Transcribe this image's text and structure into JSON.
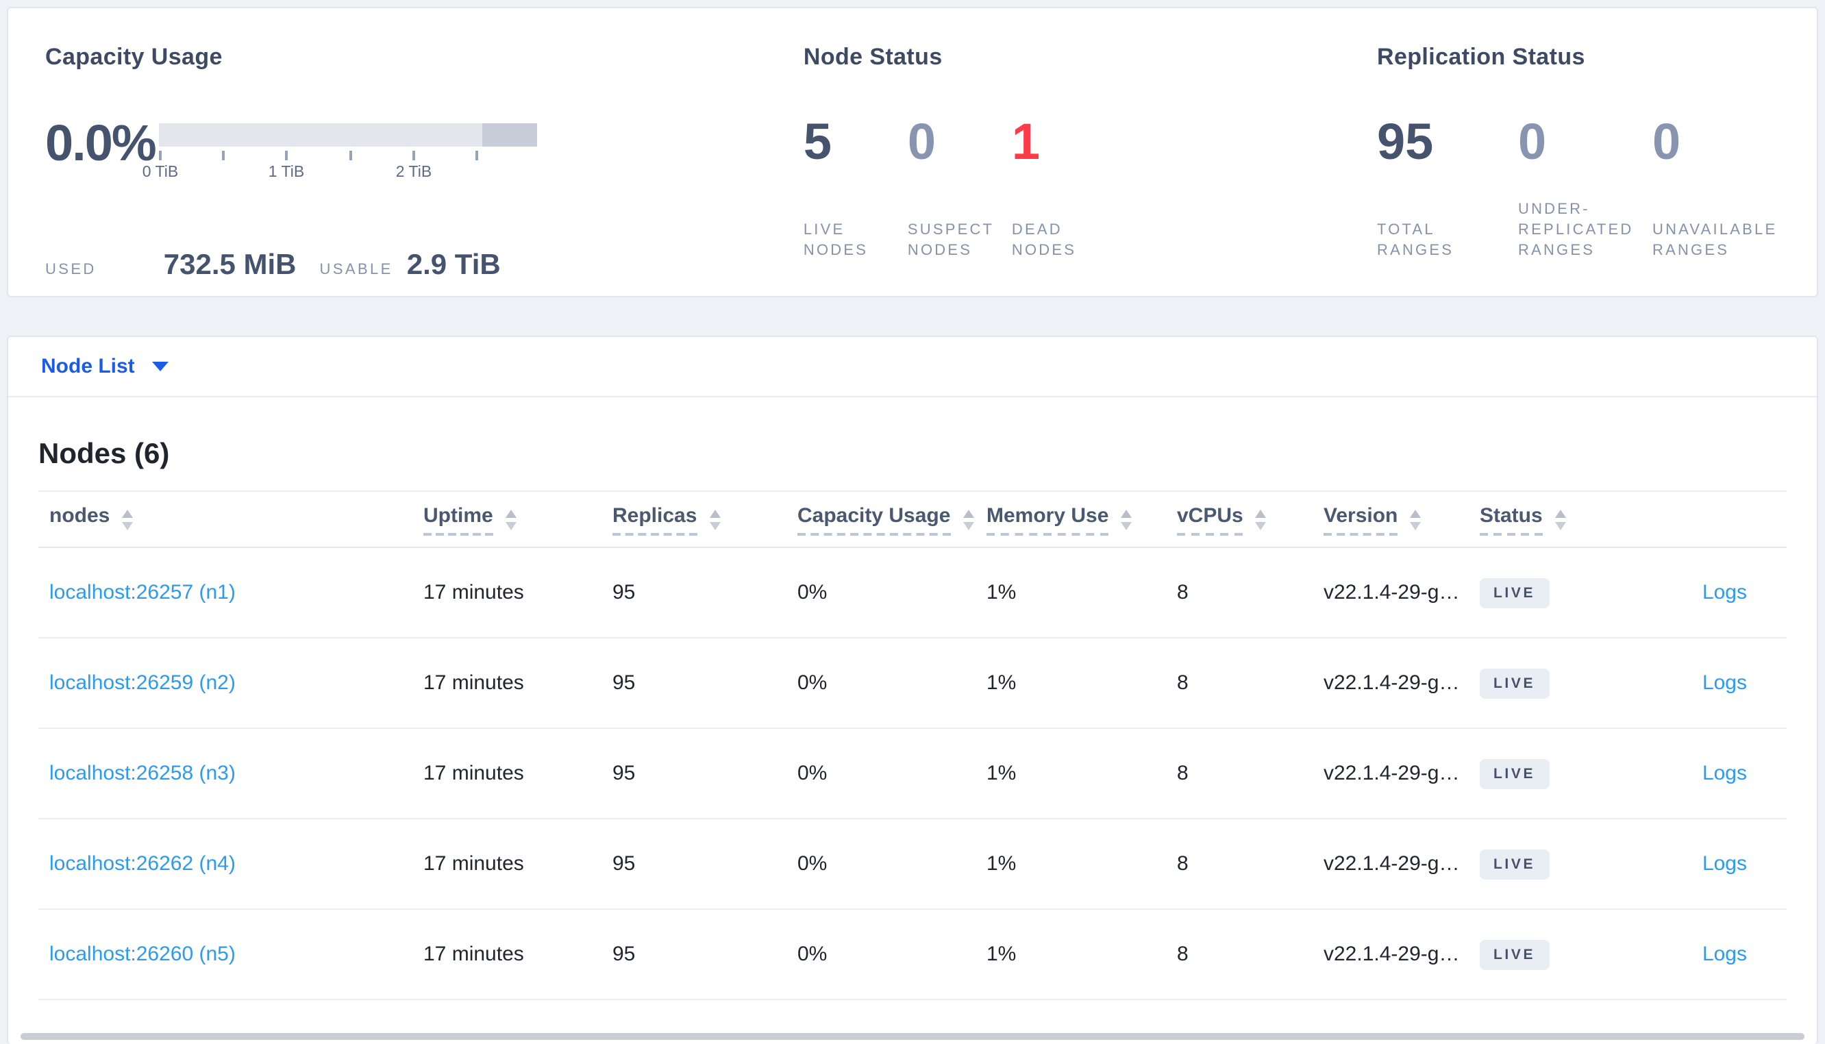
{
  "summary": {
    "capacity": {
      "title": "Capacity Usage",
      "percent": "0.0%",
      "tick_labels": [
        "0 TiB",
        "1 TiB",
        "2 TiB"
      ],
      "used_label": "USED",
      "used_value": "732.5 MiB",
      "usable_label": "USABLE",
      "usable_value": "2.9 TiB"
    },
    "node_status": {
      "title": "Node Status",
      "stats": [
        {
          "value": "5",
          "label": "LIVE NODES"
        },
        {
          "value": "0",
          "label": "SUSPECT NODES"
        },
        {
          "value": "1",
          "label": "DEAD NODES"
        }
      ]
    },
    "replication": {
      "title": "Replication Status",
      "stats": [
        {
          "value": "95",
          "label": "TOTAL RANGES"
        },
        {
          "value": "0",
          "label": "UNDER-REPLICATED RANGES"
        },
        {
          "value": "0",
          "label": "UNAVAILABLE RANGES"
        }
      ]
    }
  },
  "view_selector": {
    "label": "Node List"
  },
  "table": {
    "title": "Nodes (6)",
    "columns": [
      {
        "label": "nodes",
        "underline": false
      },
      {
        "label": "Uptime",
        "underline": true
      },
      {
        "label": "Replicas",
        "underline": true
      },
      {
        "label": "Capacity Usage",
        "underline": true
      },
      {
        "label": "Memory Use",
        "underline": true
      },
      {
        "label": "vCPUs",
        "underline": true
      },
      {
        "label": "Version",
        "underline": true
      },
      {
        "label": "Status",
        "underline": true
      }
    ],
    "rows": [
      {
        "node": "localhost:26257 (n1)",
        "uptime": "17 minutes",
        "replicas": "95",
        "capacity": "0%",
        "memory": "1%",
        "vcpus": "8",
        "version": "v22.1.4-29-g…",
        "status": "LIVE",
        "logs": "Logs"
      },
      {
        "node": "localhost:26259 (n2)",
        "uptime": "17 minutes",
        "replicas": "95",
        "capacity": "0%",
        "memory": "1%",
        "vcpus": "8",
        "version": "v22.1.4-29-g…",
        "status": "LIVE",
        "logs": "Logs"
      },
      {
        "node": "localhost:26258 (n3)",
        "uptime": "17 minutes",
        "replicas": "95",
        "capacity": "0%",
        "memory": "1%",
        "vcpus": "8",
        "version": "v22.1.4-29-g…",
        "status": "LIVE",
        "logs": "Logs"
      },
      {
        "node": "localhost:26262 (n4)",
        "uptime": "17 minutes",
        "replicas": "95",
        "capacity": "0%",
        "memory": "1%",
        "vcpus": "8",
        "version": "v22.1.4-29-g…",
        "status": "LIVE",
        "logs": "Logs"
      },
      {
        "node": "localhost:26260 (n5)",
        "uptime": "17 minutes",
        "replicas": "95",
        "capacity": "0%",
        "memory": "1%",
        "vcpus": "8",
        "version": "v22.1.4-29-g…",
        "status": "LIVE",
        "logs": "Logs"
      }
    ]
  },
  "colors": {
    "accent_blue": "#1a5cea",
    "link_blue": "#2b9bf2",
    "danger_red": "#ff3b4a",
    "dark_slate": "#46536e",
    "muted_slate": "#8691ab",
    "badge_bg": "#e9edf4"
  }
}
